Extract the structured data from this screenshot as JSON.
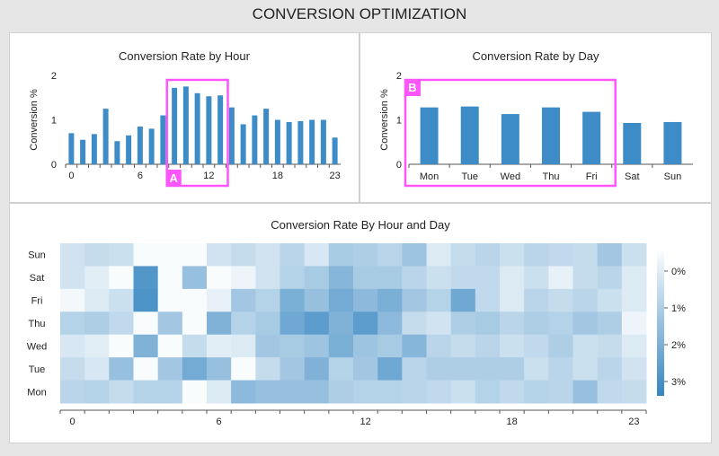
{
  "page": {
    "title": "CONVERSION OPTIMIZATION"
  },
  "colors": {
    "bar": "#3d8cc8",
    "highlight": "#ff55ff",
    "heat_low": "#ffffff",
    "heat_high": "#3585c1",
    "axis": "#555555"
  },
  "chart_data": [
    {
      "type": "bar",
      "title": "Conversion Rate by Hour",
      "ylabel": "Conversion %",
      "xlabel": "",
      "x": [
        0,
        1,
        2,
        3,
        4,
        5,
        6,
        7,
        8,
        9,
        10,
        11,
        12,
        13,
        14,
        15,
        16,
        17,
        18,
        19,
        20,
        21,
        22,
        23
      ],
      "values": [
        0.7,
        0.55,
        0.68,
        1.25,
        0.52,
        0.65,
        0.85,
        0.8,
        1.1,
        1.72,
        1.75,
        1.6,
        1.53,
        1.55,
        1.28,
        0.9,
        1.1,
        1.25,
        1.0,
        0.95,
        0.97,
        1.0,
        1.0,
        0.6
      ],
      "xticks": [
        "0",
        "6",
        "12",
        "18",
        "23"
      ],
      "yticks": [
        "0",
        "1",
        "2"
      ],
      "ylim": [
        0,
        2
      ],
      "annotation": {
        "label": "A",
        "from": 9,
        "to": 13
      }
    },
    {
      "type": "bar",
      "title": "Conversion Rate by Day",
      "ylabel": "Conversion %",
      "xlabel": "",
      "categories": [
        "Mon",
        "Tue",
        "Wed",
        "Thu",
        "Fri",
        "Sat",
        "Sun"
      ],
      "values": [
        1.28,
        1.3,
        1.13,
        1.28,
        1.18,
        0.93,
        0.95
      ],
      "yticks": [
        "0",
        "1",
        "2"
      ],
      "ylim": [
        0,
        2
      ],
      "annotation": {
        "label": "B",
        "from": 0,
        "to": 4
      }
    },
    {
      "type": "heatmap",
      "title": "Conversion Rate By Hour and Day",
      "rows": [
        "Sun",
        "Sat",
        "Fri",
        "Thu",
        "Wed",
        "Tue",
        "Mon"
      ],
      "xticks": [
        "0",
        "6",
        "12",
        "18",
        "23"
      ],
      "legend_ticks": [
        "0%",
        "1%",
        "2%",
        "3%"
      ],
      "scale_max": 3.5,
      "values": [
        [
          0.8,
          1.0,
          0.9,
          0.1,
          0.1,
          0.1,
          0.8,
          1.0,
          0.8,
          1.2,
          0.7,
          1.5,
          1.4,
          1.2,
          1.7,
          0.6,
          1.0,
          1.2,
          0.9,
          1.2,
          1.1,
          1.0,
          1.6,
          0.9
        ],
        [
          0.8,
          0.5,
          0.1,
          3.0,
          0.1,
          1.8,
          0.1,
          0.3,
          0.8,
          1.3,
          1.5,
          2.1,
          1.5,
          1.5,
          1.2,
          0.9,
          1.1,
          1.1,
          0.6,
          0.9,
          0.4,
          1.0,
          1.2,
          0.6
        ],
        [
          0.2,
          0.6,
          0.9,
          3.1,
          0.1,
          0.1,
          0.4,
          1.6,
          1.3,
          2.3,
          1.8,
          2.4,
          2.0,
          2.3,
          1.6,
          1.3,
          2.5,
          1.1,
          0.6,
          1.2,
          1.0,
          1.2,
          0.9,
          0.6
        ],
        [
          1.3,
          1.4,
          1.1,
          0.1,
          1.6,
          0.1,
          2.2,
          1.3,
          1.5,
          2.5,
          2.8,
          2.2,
          2.8,
          2.0,
          1.0,
          0.8,
          1.4,
          1.5,
          1.2,
          1.4,
          1.3,
          1.6,
          1.4,
          0.3
        ],
        [
          0.7,
          0.5,
          0.1,
          2.2,
          0.1,
          1.0,
          0.5,
          0.6,
          1.6,
          1.5,
          1.7,
          2.3,
          1.7,
          1.5,
          2.1,
          1.2,
          1.0,
          1.2,
          0.9,
          1.1,
          1.4,
          0.9,
          1.0,
          0.6
        ],
        [
          1.0,
          0.7,
          1.8,
          0.1,
          1.6,
          2.4,
          1.8,
          0.1,
          1.0,
          1.6,
          2.2,
          1.3,
          1.6,
          2.5,
          1.2,
          1.4,
          1.4,
          1.4,
          1.4,
          0.9,
          1.2,
          0.9,
          1.2,
          0.8
        ],
        [
          1.2,
          1.3,
          1.0,
          1.3,
          1.3,
          0.1,
          0.6,
          2.0,
          1.8,
          1.8,
          1.8,
          1.4,
          1.3,
          1.3,
          1.2,
          1.1,
          0.9,
          1.3,
          1.1,
          1.3,
          1.2,
          1.8,
          1.1,
          1.0
        ]
      ]
    }
  ]
}
